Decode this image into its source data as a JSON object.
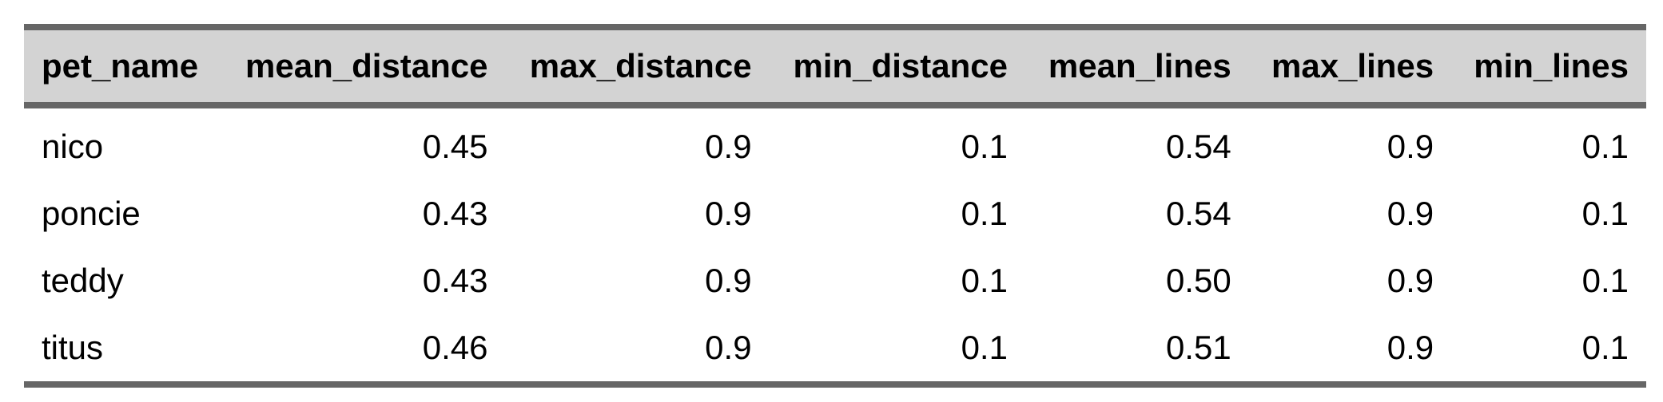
{
  "table": {
    "columns": [
      "pet_name",
      "mean_distance",
      "max_distance",
      "min_distance",
      "mean_lines",
      "max_lines",
      "min_lines"
    ],
    "rows": [
      [
        "nico",
        "0.45",
        "0.9",
        "0.1",
        "0.54",
        "0.9",
        "0.1"
      ],
      [
        "poncie",
        "0.43",
        "0.9",
        "0.1",
        "0.54",
        "0.9",
        "0.1"
      ],
      [
        "teddy",
        "0.43",
        "0.9",
        "0.1",
        "0.50",
        "0.9",
        "0.1"
      ],
      [
        "titus",
        "0.46",
        "0.9",
        "0.1",
        "0.51",
        "0.9",
        "0.1"
      ]
    ]
  },
  "colors": {
    "header_background": "#d3d3d3",
    "rule": "#666666",
    "text": "#000000",
    "background": "#ffffff"
  }
}
